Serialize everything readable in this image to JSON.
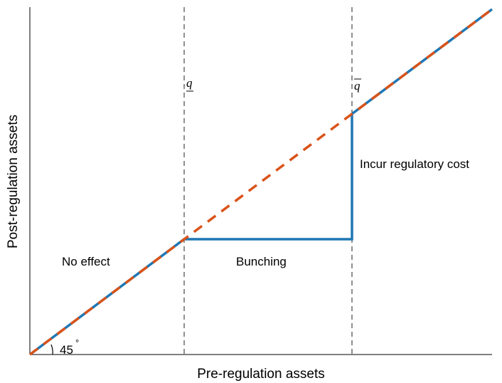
{
  "x_axis_label": "Pre-regulation assets",
  "y_axis_label": "Post-regulation assets",
  "annotations": {
    "no_effect": "No effect",
    "bunching": "Bunching",
    "incur_cost": "Incur regulatory cost",
    "angle": "45",
    "degree": "°"
  },
  "thresholds": {
    "lower": "q",
    "upper": "q"
  }
}
